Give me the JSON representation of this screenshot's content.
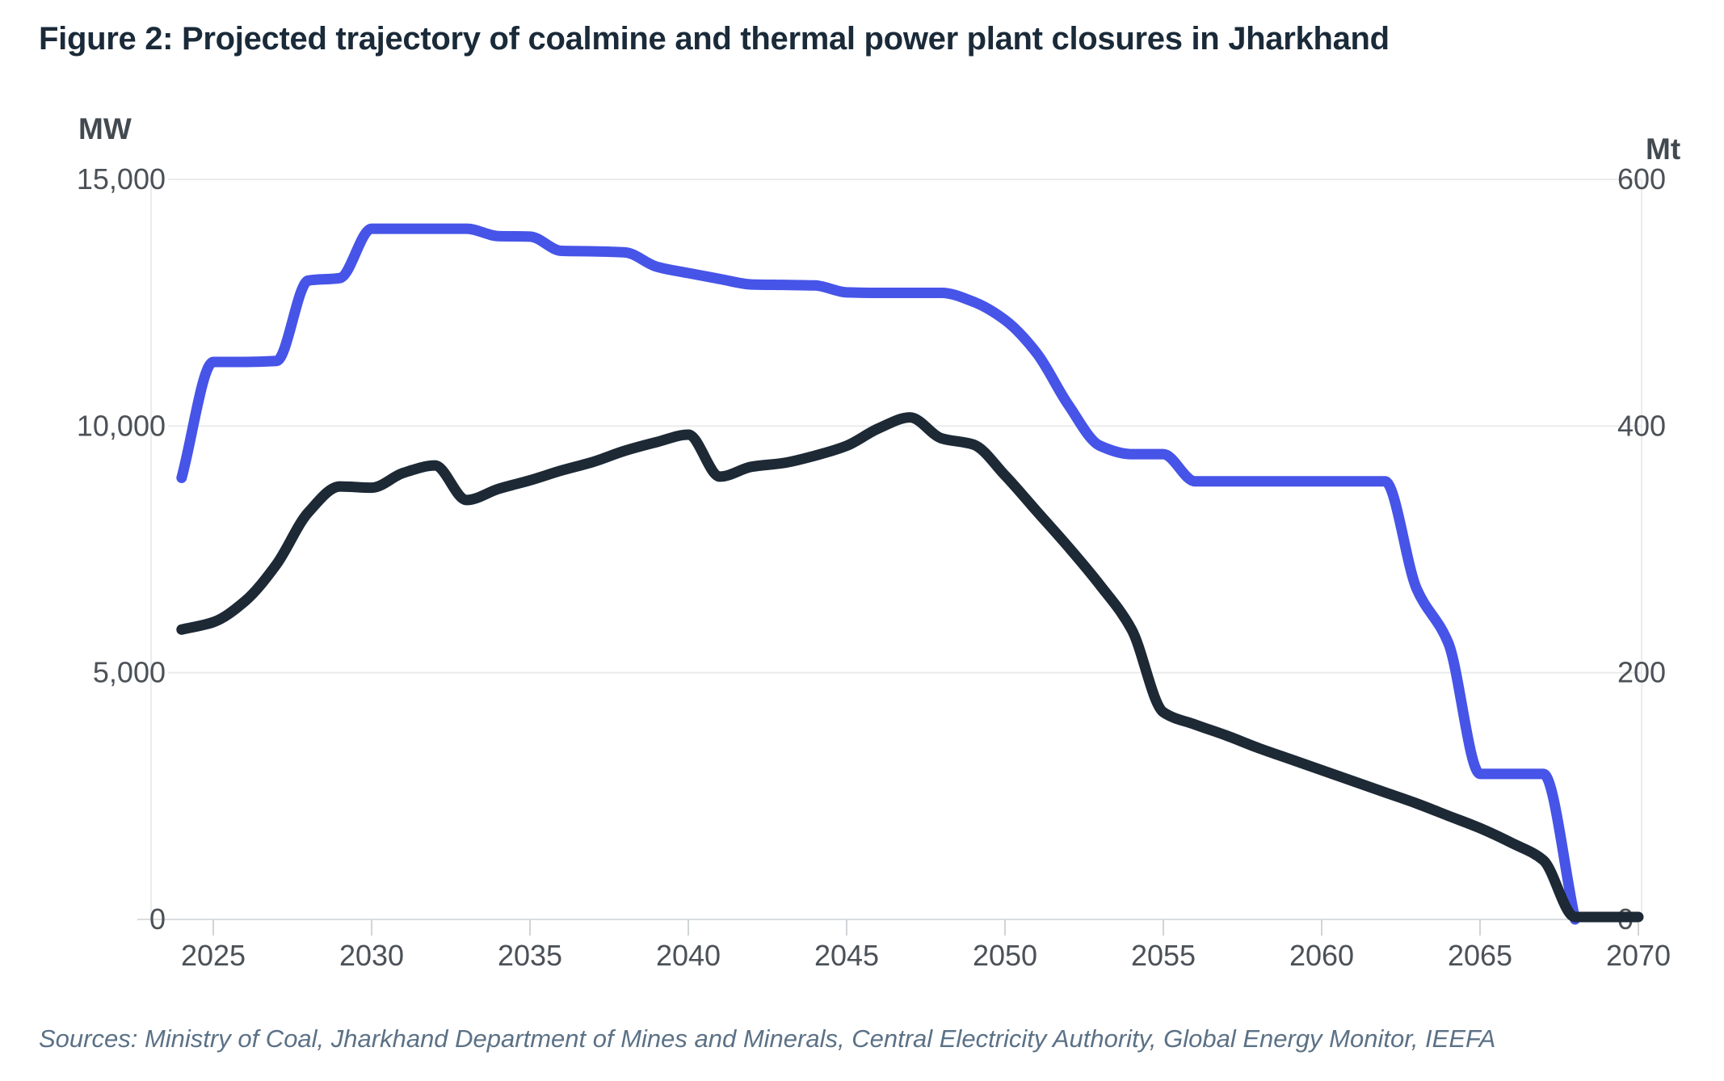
{
  "title": "Figure 2: Projected trajectory of coalmine and thermal power plant closures in Jharkhand",
  "sources": "Sources: Ministry of Coal, Jharkhand Department of Mines and Minerals, Central Electricity Authority, Global Energy Monitor, IEEFA",
  "colors": {
    "capacity_line": "#4754e8",
    "production_line": "#1d2935",
    "grid": "#eaebed",
    "axis_line": "#dadde0",
    "tick": "#d0d4d7",
    "tick_label": "#4b5157",
    "unit_label": "#424a51",
    "title": "#1a2a39",
    "sources": "#5b7186",
    "background": "#ffffff"
  },
  "chart_data": {
    "type": "line",
    "title": "Projected trajectory of coalmine and thermal power plant closures in Jharkhand",
    "grid": "horizontal-on",
    "legend": "none",
    "x_axis": {
      "start_year": 2024,
      "end_year": 2070,
      "tick_years": [
        2025,
        2030,
        2035,
        2040,
        2045,
        2050,
        2055,
        2060,
        2065,
        2070
      ]
    },
    "left_axis": {
      "unit": "MW",
      "range": [
        0,
        15000
      ],
      "ticks": [
        {
          "value": 15000,
          "label": "15,000"
        },
        {
          "value": 10000,
          "label": "10,000"
        },
        {
          "value": 5000,
          "label": "5,000"
        },
        {
          "value": 0,
          "label": "0"
        }
      ]
    },
    "right_axis": {
      "unit": "Mt",
      "range": [
        0,
        600
      ],
      "ticks": [
        {
          "value": 600,
          "label": "600"
        },
        {
          "value": 400,
          "label": "400"
        },
        {
          "value": 200,
          "label": "200"
        },
        {
          "value": 0,
          "label": "0"
        }
      ]
    },
    "series": [
      {
        "name": "thermal-power-capacity",
        "axis": "left",
        "unit": "MW",
        "color_key": "capacity_line",
        "start_year": 2024,
        "step_years": 1,
        "values": [
          8950,
          11300,
          11300,
          11320,
          12950,
          13000,
          14000,
          14000,
          14000,
          14000,
          13850,
          13840,
          13550,
          13540,
          13520,
          13230,
          13100,
          12980,
          12870,
          12860,
          12850,
          12710,
          12700,
          12700,
          12700,
          12520,
          12150,
          11480,
          10430,
          9600,
          9430,
          9430,
          8880,
          8880,
          8880,
          8880,
          8880,
          8880,
          8880,
          6700,
          5600,
          2950,
          2950,
          2950,
          0
        ]
      },
      {
        "name": "coalmine-production",
        "axis": "right",
        "unit": "Mt",
        "color_key": "production_line",
        "start_year": 2024,
        "step_years": 1,
        "values": [
          235,
          241,
          258,
          288,
          330,
          351,
          350,
          362,
          368,
          340,
          349,
          356,
          364,
          371,
          380,
          387,
          393,
          359,
          367,
          370,
          376,
          384,
          398,
          407,
          390,
          385,
          360,
          331,
          302,
          271,
          235,
          168,
          158,
          149,
          139,
          130,
          121,
          112,
          103,
          94,
          84,
          74,
          62,
          48,
          2,
          2,
          2
        ]
      }
    ]
  }
}
